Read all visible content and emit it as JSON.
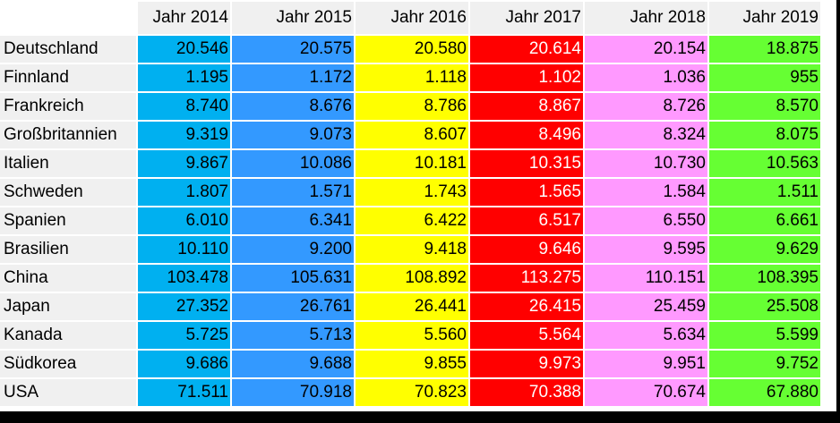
{
  "table": {
    "columns": [
      "Jahr 2014",
      "Jahr 2015",
      "Jahr 2016",
      "Jahr 2017",
      "Jahr 2018",
      "Jahr 2019"
    ],
    "column_colors": {
      "Jahr 2014": "#00b0f0",
      "Jahr 2015": "#3399ff",
      "Jahr 2016": "#ffff00",
      "Jahr 2017": "#ff0000",
      "Jahr 2018": "#ff99ff",
      "Jahr 2019": "#66ff33"
    },
    "rows": [
      {
        "country": "Deutschland",
        "values": [
          "20.546",
          "20.575",
          "20.580",
          "20.614",
          "20.154",
          "18.875"
        ]
      },
      {
        "country": "Finnland",
        "values": [
          "1.195",
          "1.172",
          "1.118",
          "1.102",
          "1.036",
          "955"
        ]
      },
      {
        "country": "Frankreich",
        "values": [
          "8.740",
          "8.676",
          "8.786",
          "8.867",
          "8.726",
          "8.570"
        ]
      },
      {
        "country": "Großbritannien",
        "values": [
          "9.319",
          "9.073",
          "8.607",
          "8.496",
          "8.324",
          "8.075"
        ]
      },
      {
        "country": "Italien",
        "values": [
          "9.867",
          "10.086",
          "10.181",
          "10.315",
          "10.730",
          "10.563"
        ]
      },
      {
        "country": "Schweden",
        "values": [
          "1.807",
          "1.571",
          "1.743",
          "1.565",
          "1.584",
          "1.511"
        ]
      },
      {
        "country": "Spanien",
        "values": [
          "6.010",
          "6.341",
          "6.422",
          "6.517",
          "6.550",
          "6.661"
        ]
      },
      {
        "country": "Brasilien",
        "values": [
          "10.110",
          "9.200",
          "9.418",
          "9.646",
          "9.595",
          "9.629"
        ]
      },
      {
        "country": "China",
        "values": [
          "103.478",
          "105.631",
          "108.892",
          "113.275",
          "110.151",
          "108.395"
        ]
      },
      {
        "country": "Japan",
        "values": [
          "27.352",
          "26.761",
          "26.441",
          "26.415",
          "25.459",
          "25.508"
        ]
      },
      {
        "country": "Kanada",
        "values": [
          "5.725",
          "5.713",
          "5.560",
          "5.564",
          "5.634",
          "5.599"
        ]
      },
      {
        "country": "Südkorea",
        "values": [
          "9.686",
          "9.688",
          "9.855",
          "9.973",
          "9.951",
          "9.752"
        ]
      },
      {
        "country": "USA",
        "values": [
          "71.511",
          "70.918",
          "70.823",
          "70.388",
          "70.674",
          "67.880"
        ]
      }
    ]
  }
}
